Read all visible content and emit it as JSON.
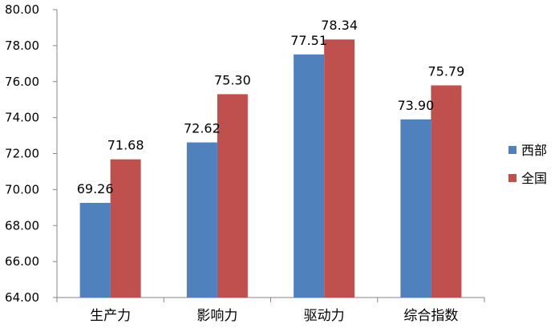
{
  "chart_data": {
    "type": "bar",
    "categories": [
      "生产力",
      "影响力",
      "驱动力",
      "综合指数"
    ],
    "series": [
      {
        "name": "西部",
        "color": "#4F81BD",
        "values": [
          69.26,
          72.62,
          77.51,
          73.9
        ]
      },
      {
        "name": "全国",
        "color": "#C0504D",
        "values": [
          71.68,
          75.3,
          78.34,
          75.79
        ]
      }
    ],
    "value_labels": [
      [
        "69.26",
        "72.62",
        "77.51",
        "73.90"
      ],
      [
        "71.68",
        "75.30",
        "78.34",
        "75.79"
      ]
    ],
    "ylim": [
      64,
      80
    ],
    "yticks": [
      "64.00",
      "66.00",
      "68.00",
      "70.00",
      "72.00",
      "74.00",
      "76.00",
      "78.00",
      "80.00"
    ],
    "grid": false,
    "legend_position": "right",
    "title": "",
    "xlabel": "",
    "ylabel": ""
  }
}
